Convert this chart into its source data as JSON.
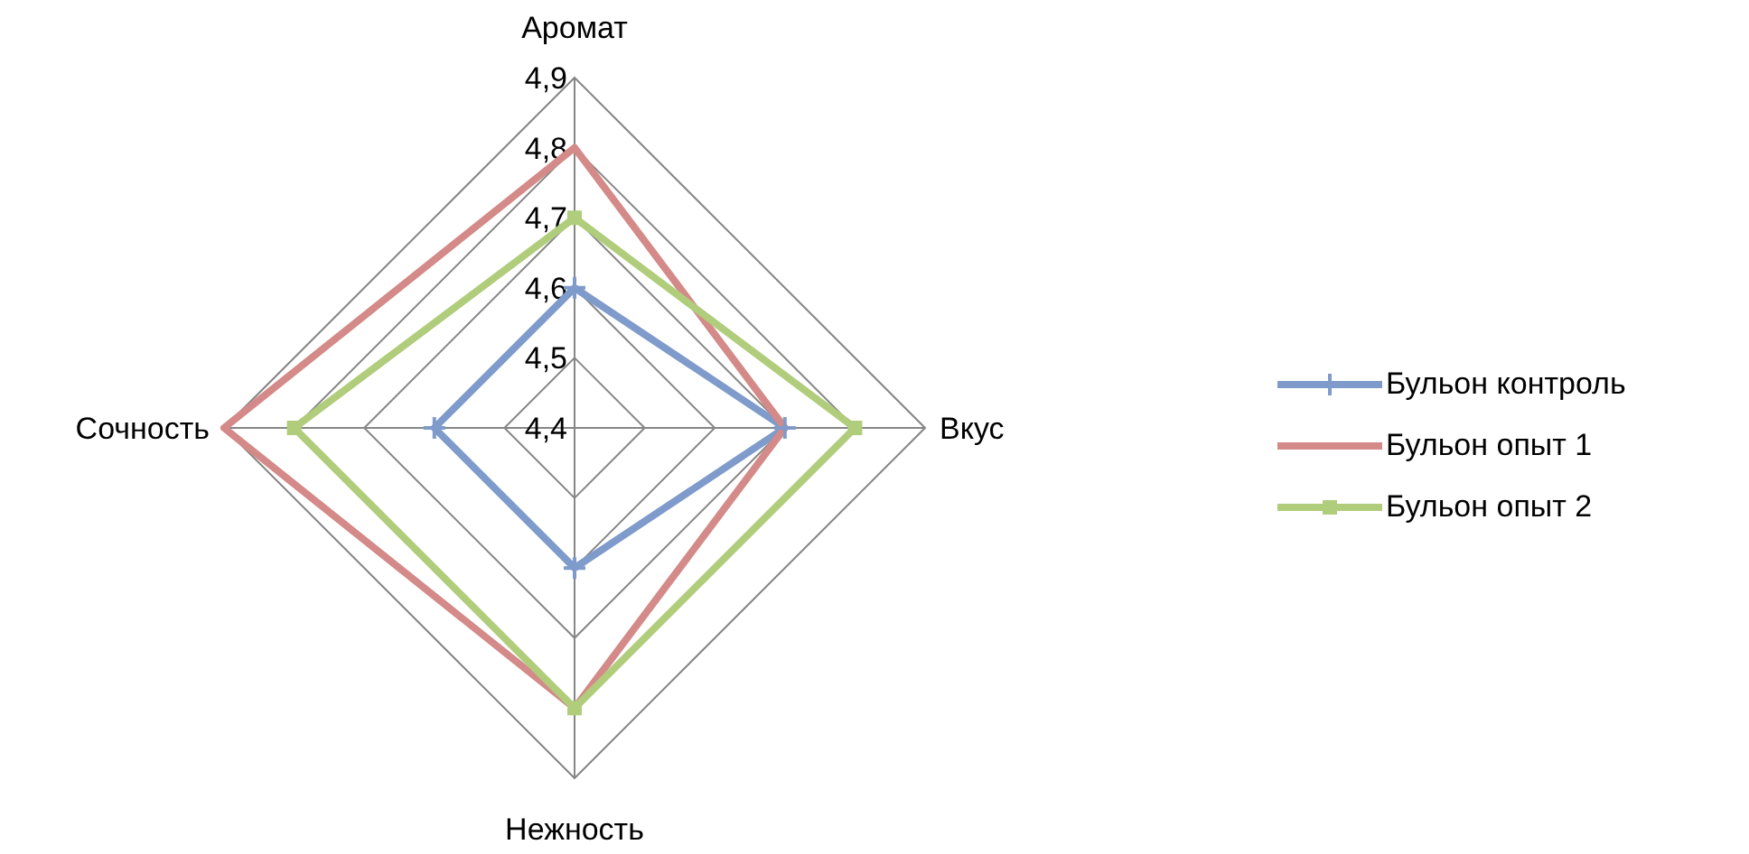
{
  "chart_data": {
    "type": "radar",
    "categories": [
      "Аромат",
      "Вкус",
      "Нежность",
      "Сочность"
    ],
    "ylim": [
      4.4,
      4.9
    ],
    "yticks": [
      {
        "value": 4.4,
        "label": "4,4"
      },
      {
        "value": 4.5,
        "label": "4,5"
      },
      {
        "value": 4.6,
        "label": "4,6"
      },
      {
        "value": 4.7,
        "label": "4,7"
      },
      {
        "value": 4.8,
        "label": "4,8"
      },
      {
        "value": 4.9,
        "label": "4,9"
      }
    ],
    "grid": true,
    "legend": "right",
    "series": [
      {
        "name": "Бульон контроль",
        "color": "#7f9bcb",
        "marker": "cross",
        "values": [
          4.6,
          4.7,
          4.6,
          4.6
        ]
      },
      {
        "name": "Бульон опыт 1",
        "color": "#d38a88",
        "marker": "none",
        "values": [
          4.8,
          4.7,
          4.8,
          4.9
        ]
      },
      {
        "name": "Бульон опыт 2",
        "color": "#b0cd7c",
        "marker": "square",
        "values": [
          4.7,
          4.8,
          4.8,
          4.8
        ]
      }
    ]
  }
}
